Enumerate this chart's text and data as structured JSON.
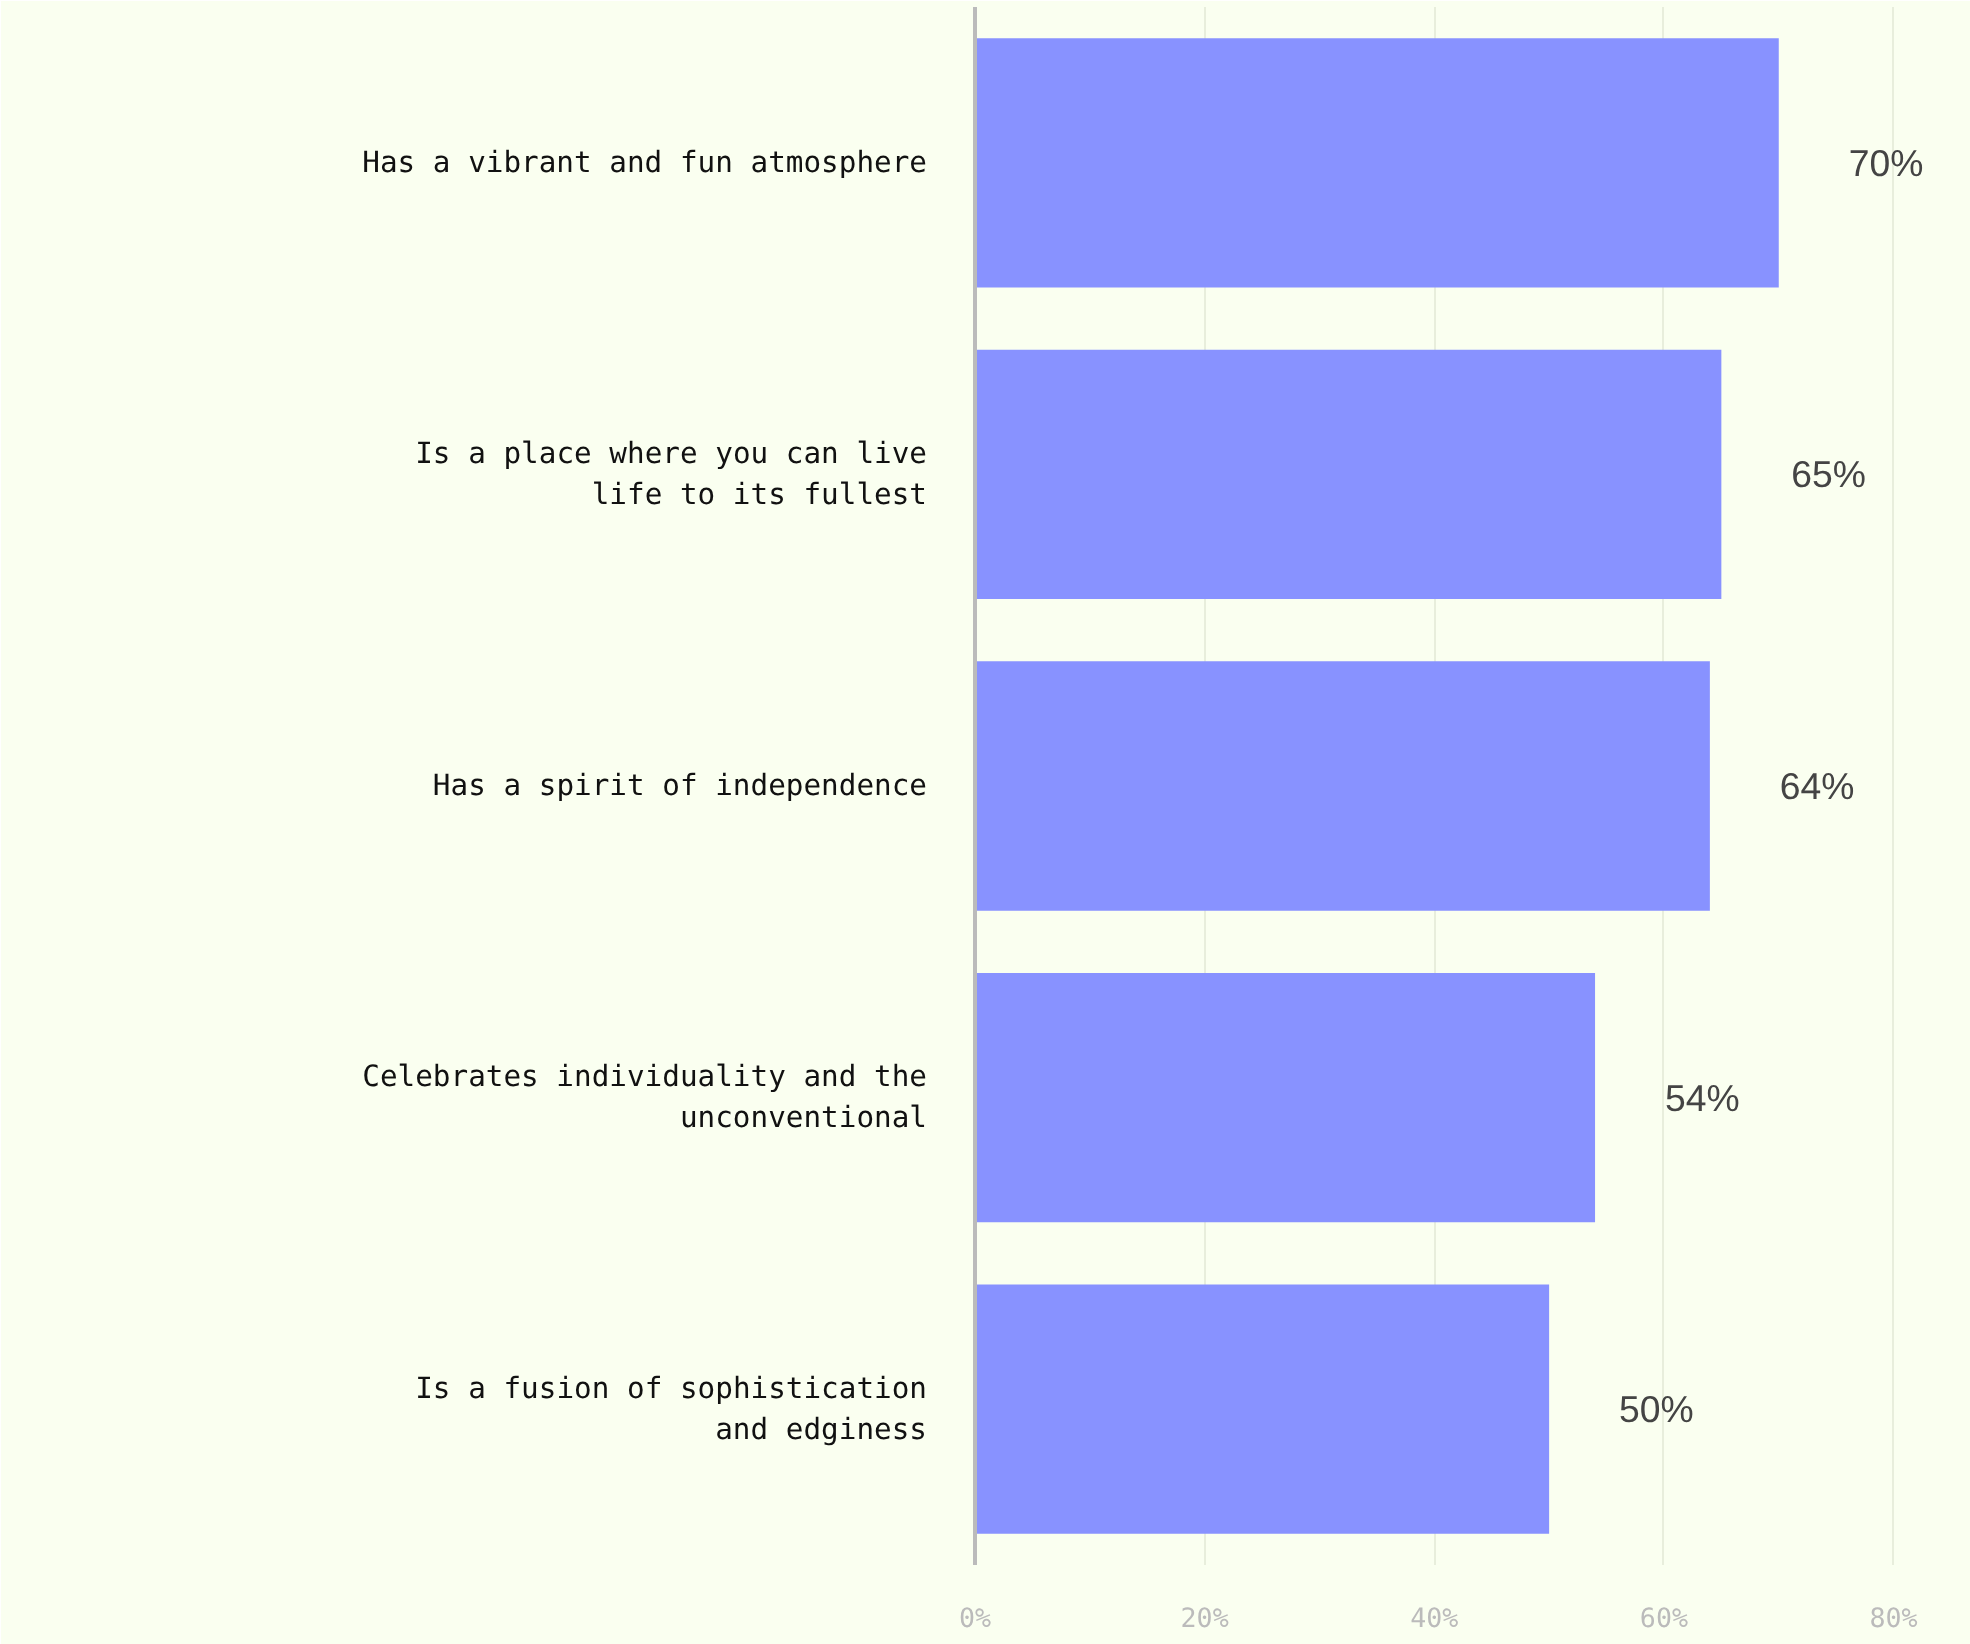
{
  "chart_data": {
    "type": "bar",
    "orientation": "horizontal",
    "categories": [
      "Has a vibrant and fun atmosphere",
      "Is a place where you can live life to its fullest",
      "Has a spirit of independence",
      "Celebrates individuality and the unconventional",
      "Is a fusion of sophistication and edginess"
    ],
    "values": [
      70,
      65,
      64,
      54,
      50
    ],
    "value_labels": [
      "70%",
      "65%",
      "64%",
      "54%",
      "50%"
    ],
    "color": "#8892ff",
    "xlim": [
      0,
      85
    ],
    "xticks": [
      {
        "value": 0,
        "label": "0%"
      },
      {
        "value": 20,
        "label": "20%"
      },
      {
        "value": 40,
        "label": "40%"
      },
      {
        "value": 60,
        "label": "60%"
      },
      {
        "value": 80,
        "label": "80%"
      }
    ],
    "grid": "x"
  }
}
